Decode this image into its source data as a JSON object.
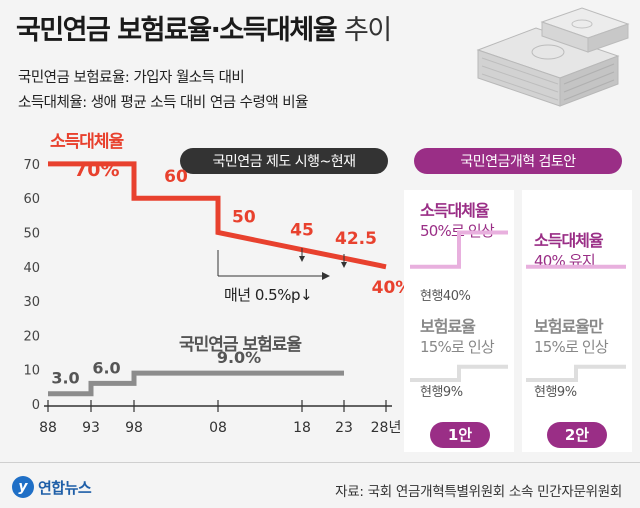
{
  "title": {
    "main": "국민연금 보험료율·소득대체율",
    "sub": "추이"
  },
  "definitions": [
    "국민연금 보험료율: 가입자 월소득 대비",
    "소득대체율: 생애 평균 소득 대비 연금 수령액 비율"
  ],
  "chart_data": {
    "type": "line",
    "x_tick_labels": [
      "88",
      "93",
      "98",
      "08",
      "18",
      "23",
      "28년"
    ],
    "y_tick_labels": [
      "0",
      "10",
      "20",
      "30",
      "40",
      "50",
      "60",
      "70"
    ],
    "ylim": [
      0,
      75
    ],
    "grid": false,
    "series": [
      {
        "name": "소득대체율",
        "color": "#e8412e",
        "points": [
          [
            1988,
            70
          ],
          [
            1998,
            70
          ],
          [
            1998,
            60
          ],
          [
            2008,
            60
          ],
          [
            2008,
            50
          ],
          [
            2018,
            45
          ],
          [
            2023,
            42.5
          ],
          [
            2028,
            40
          ]
        ],
        "label": {
          "name": "소득대체율",
          "value": "70%"
        },
        "data_labels": [
          {
            "year": 2003,
            "value": 60,
            "text": "60"
          },
          {
            "year": 2008,
            "value": 50,
            "text": "50"
          },
          {
            "year": 2018,
            "value": 45,
            "text": "45"
          },
          {
            "year": 2023,
            "value": 42.5,
            "text": "42.5"
          },
          {
            "year": 2028,
            "value": 40,
            "text": "40%"
          }
        ]
      },
      {
        "name": "국민연금 보험료율",
        "color": "#8c8c8c",
        "points": [
          [
            1988,
            3
          ],
          [
            1993,
            3
          ],
          [
            1993,
            6
          ],
          [
            1998,
            6
          ],
          [
            1998,
            9
          ],
          [
            2023,
            9
          ]
        ],
        "data_labels": [
          {
            "year": 1990.5,
            "value": 3,
            "text": "3.0"
          },
          {
            "year": 1995.5,
            "value": 6,
            "text": "6.0"
          },
          {
            "year": 2010.5,
            "value": 9,
            "text": "9.0%"
          }
        ]
      }
    ],
    "annotations": {
      "period_banner": "국민연금 제도 시행~현재",
      "decline_note": "매년 0.5%p↓"
    },
    "reform": {
      "banner": "국민연금개혁 검토안",
      "options": [
        {
          "label": "1안",
          "replacement": {
            "title": "소득대체율",
            "desc": "50%로 인상",
            "current": "현행40%",
            "from": 40,
            "to": 50
          },
          "premium": {
            "title": "보험료율",
            "desc": "15%로 인상",
            "current": "현행9%",
            "from": 9,
            "to": 15
          }
        },
        {
          "label": "2안",
          "replacement": {
            "title": "소득대체율",
            "desc": "40% 유지",
            "from": 40,
            "to": 40
          },
          "premium": {
            "title": "보험료율만",
            "desc": "15%로 인상",
            "current": "현행9%",
            "from": 9,
            "to": 15
          }
        }
      ]
    }
  },
  "colors": {
    "red": "#e8412e",
    "gray": "#8c8c8c",
    "purple": "#9a2e86",
    "pink_line": "#e8b0de",
    "dark": "#333333"
  },
  "icons": [
    "money-stack-icon"
  ],
  "footer": {
    "brand": "연합뉴스",
    "source": "자료: 국회 연금개혁특별위원회 소속 민간자문위원회"
  }
}
